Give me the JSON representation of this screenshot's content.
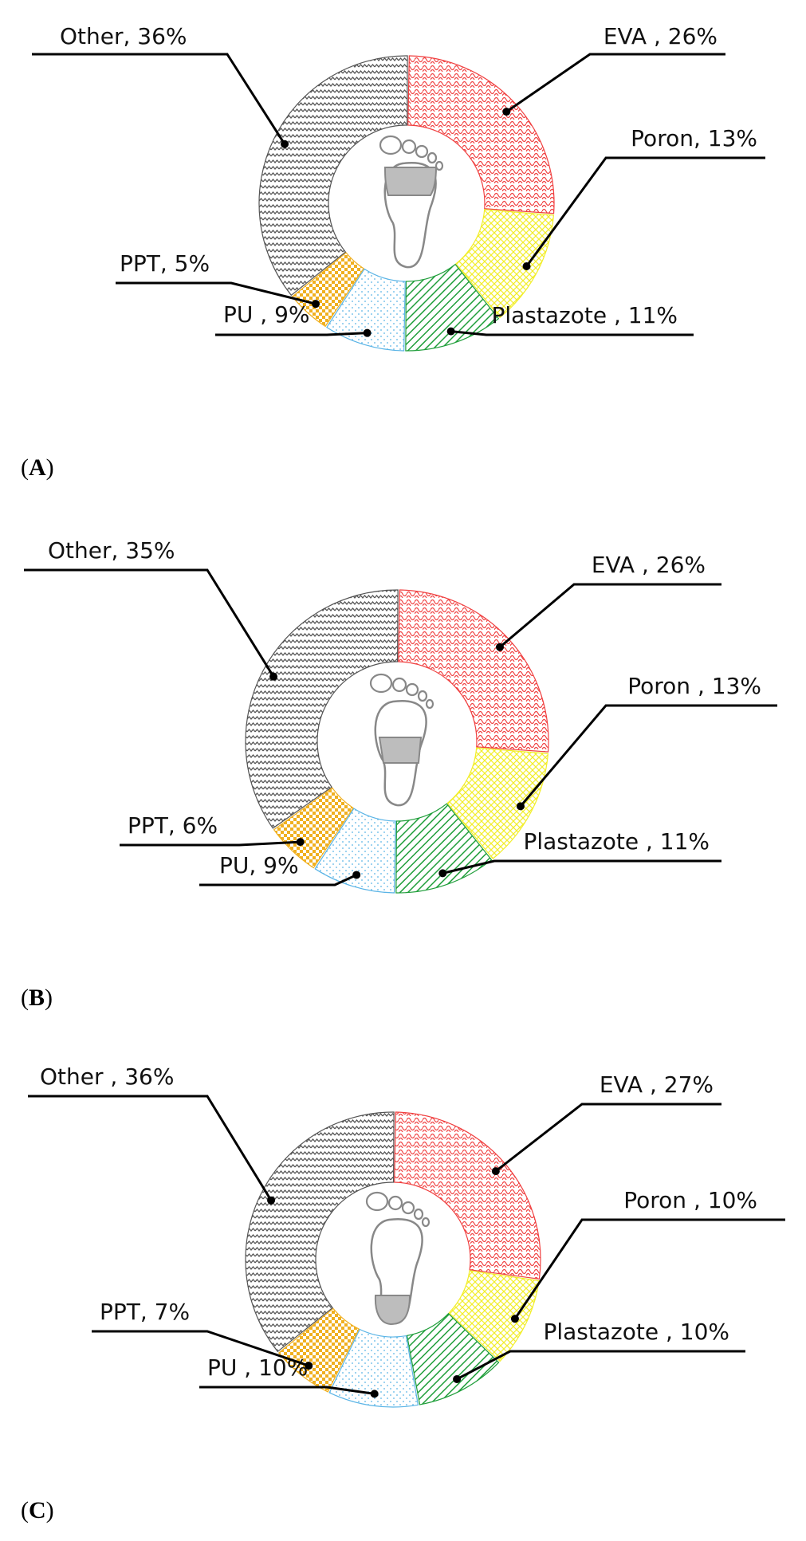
{
  "colors": {
    "EVA": "#f04040",
    "Poron": "#f2ee2a",
    "Plastazote": "#1f9e3a",
    "PU": "#5ab4e6",
    "PPT": "#f0b020",
    "Other": "#555555"
  },
  "chart_data": [
    {
      "type": "pie",
      "panel": "A",
      "region_highlighted": "forefoot",
      "categories": [
        "EVA",
        "Poron",
        "Plastazote",
        "PU",
        "PPT",
        "Other"
      ],
      "values": [
        26,
        13,
        11,
        9,
        5,
        36
      ],
      "labels": [
        "EVA , 26%",
        "Poron,  13%",
        "Plastazote , 11%",
        "PU , 9%",
        "PPT, 5%",
        "Other, 36%"
      ]
    },
    {
      "type": "pie",
      "panel": "B",
      "region_highlighted": "midfoot",
      "categories": [
        "EVA",
        "Poron",
        "Plastazote",
        "PU",
        "PPT",
        "Other"
      ],
      "values": [
        26,
        13,
        11,
        9,
        6,
        35
      ],
      "labels": [
        "EVA , 26%",
        "Poron , 13%",
        "Plastazote , 11%",
        "PU, 9%",
        "PPT, 6%",
        "Other, 35%"
      ]
    },
    {
      "type": "pie",
      "panel": "C",
      "region_highlighted": "heel",
      "categories": [
        "EVA",
        "Poron",
        "Plastazote",
        "PU",
        "PPT",
        "Other"
      ],
      "values": [
        27,
        10,
        10,
        10,
        7,
        36
      ],
      "labels": [
        "EVA , 27%",
        "Poron , 10%",
        "Plastazote  , 10%",
        "PU , 10%",
        "PPT, 7%",
        "Other , 36%"
      ]
    }
  ],
  "panels": [
    {
      "letter": "A"
    },
    {
      "letter": "B"
    },
    {
      "letter": "C"
    }
  ]
}
